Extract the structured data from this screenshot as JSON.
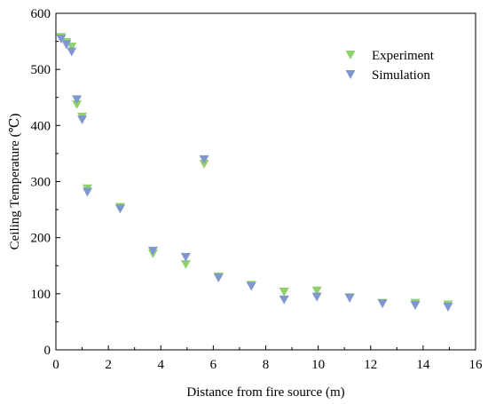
{
  "chart_data": {
    "type": "scatter",
    "xlabel": "Distance from fire source (m)",
    "ylabel": "Ceiling Temperature (℃)",
    "xlim": [
      0,
      16
    ],
    "ylim": [
      0,
      600
    ],
    "xticks": [
      "0",
      "2",
      "4",
      "6",
      "8",
      "10",
      "12",
      "14",
      "16"
    ],
    "yticks": [
      "0",
      "100",
      "200",
      "300",
      "400",
      "500",
      "600"
    ],
    "legend_position": "top-right",
    "grid": false,
    "marker": "downward-triangle",
    "series": [
      {
        "name": "Experiment",
        "color": "#8fd16a",
        "x": [
          0.2,
          0.4,
          0.6,
          0.8,
          1.0,
          1.2,
          2.45,
          3.7,
          4.95,
          5.65,
          6.2,
          7.45,
          8.7,
          9.95,
          11.2,
          12.45,
          13.7,
          14.95
        ],
        "y": [
          557,
          548,
          540,
          437,
          415,
          287,
          254,
          171,
          152,
          331,
          130,
          115,
          103,
          105,
          93,
          83,
          83,
          80
        ]
      },
      {
        "name": "Simulation",
        "color": "#7f96cf",
        "x": [
          0.2,
          0.4,
          0.6,
          0.8,
          1.0,
          1.2,
          2.45,
          3.7,
          4.95,
          5.65,
          6.2,
          7.45,
          8.7,
          9.95,
          11.2,
          12.45,
          13.7,
          14.95
        ],
        "y": [
          554,
          544,
          531,
          446,
          410,
          281,
          251,
          176,
          165,
          339,
          128,
          113,
          89,
          94,
          92,
          82,
          79,
          76
        ]
      }
    ]
  }
}
